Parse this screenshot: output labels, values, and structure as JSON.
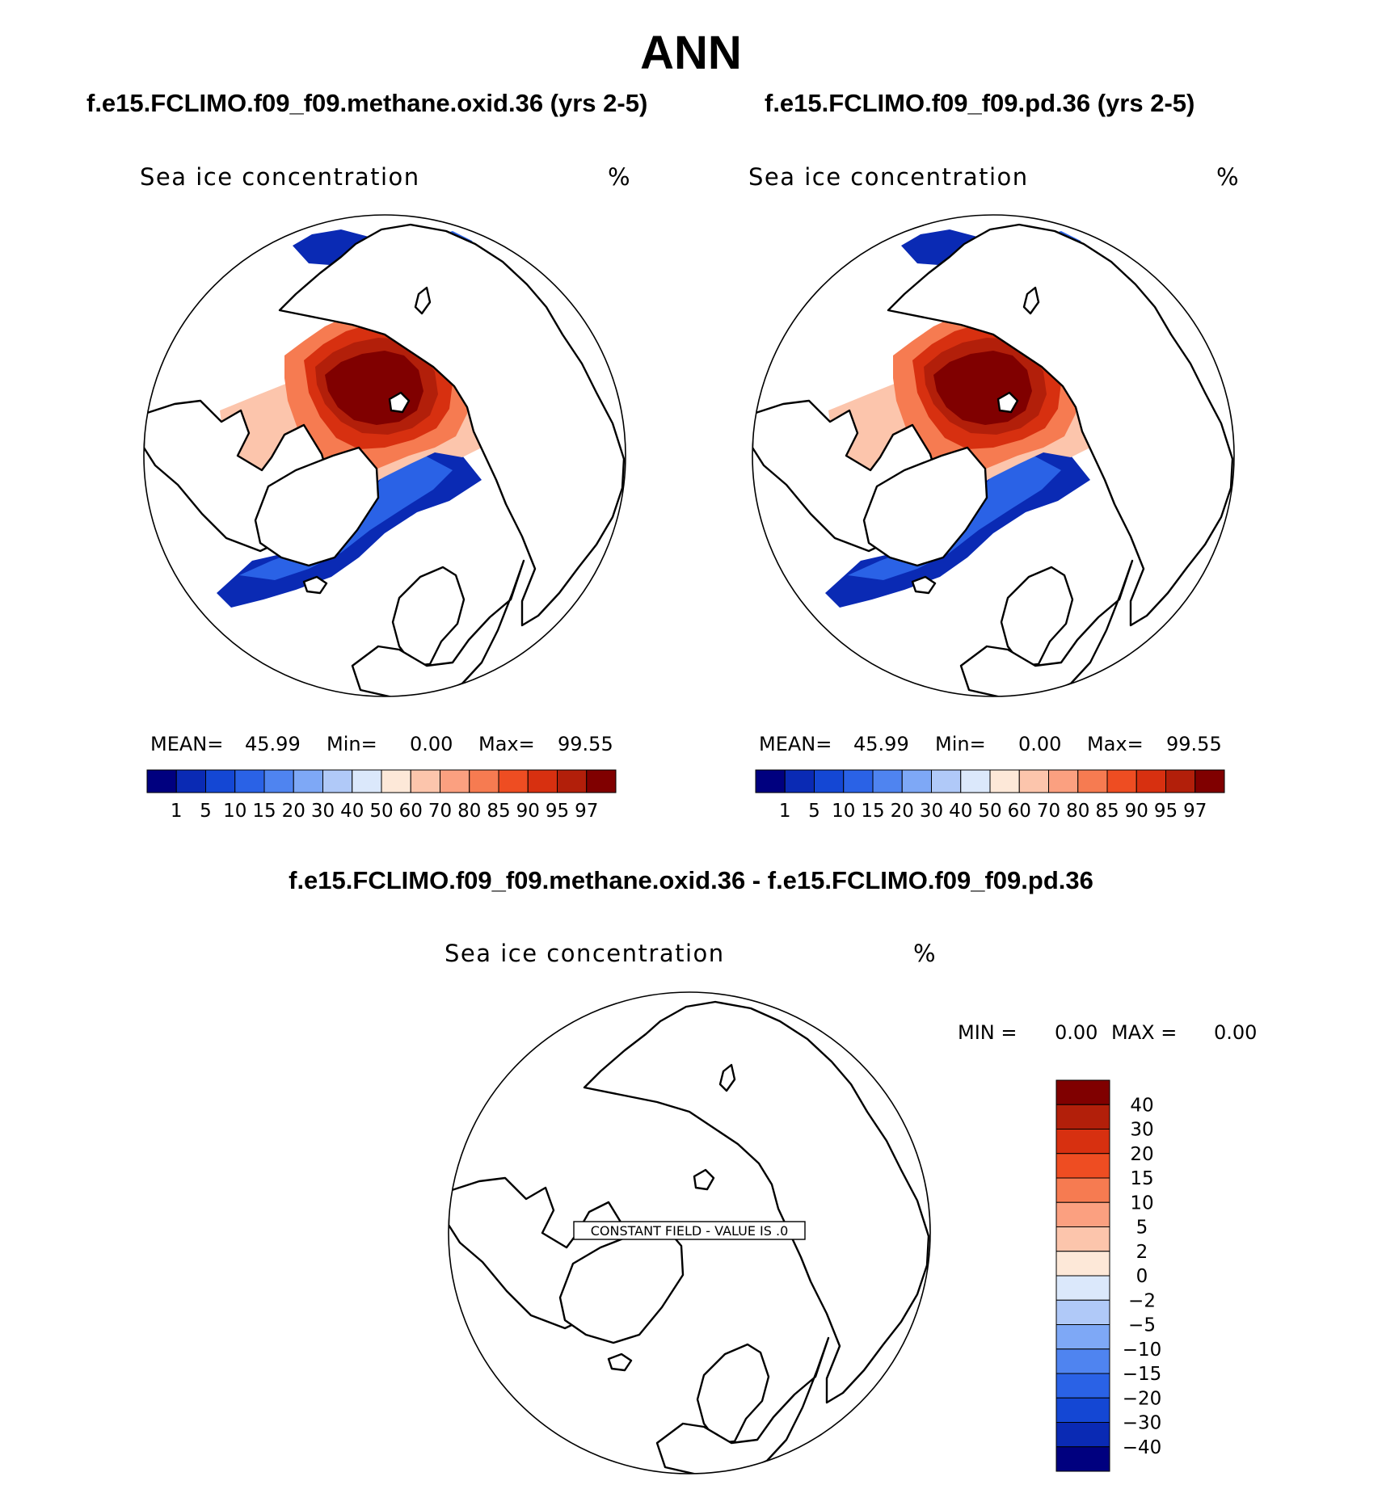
{
  "title": "ANN",
  "panels": [
    {
      "case_title": "f.e15.FCLIMO.f09_f09.methane.oxid.36 (yrs 2-5)",
      "variable_label": "Sea ice concentration",
      "units": "%",
      "stats": {
        "mean_label": "MEAN=",
        "mean_value": "45.99",
        "min_label": "Min=",
        "min_value": "0.00",
        "max_label": "Max=",
        "max_value": "99.55"
      }
    },
    {
      "case_title": "f.e15.FCLIMO.f09_f09.pd.36 (yrs 2-5)",
      "variable_label": "Sea ice concentration",
      "units": "%",
      "stats": {
        "mean_label": "MEAN=",
        "mean_value": "45.99",
        "min_label": "Min=",
        "min_value": "0.00",
        "max_label": "Max=",
        "max_value": "99.55"
      }
    }
  ],
  "difference": {
    "case_title": "f.e15.FCLIMO.f09_f09.methane.oxid.36 - f.e15.FCLIMO.f09_f09.pd.36",
    "variable_label": "Sea ice concentration",
    "units": "%",
    "min_label": "MIN =",
    "min_value": "0.00",
    "max_label": "MAX =",
    "max_value": "0.00",
    "constant_field_label": "CONSTANT FIELD - VALUE IS .0"
  },
  "chart_data": [
    {
      "type": "heatmap",
      "projection": "north-polar-stereographic",
      "title": "Sea ice concentration",
      "units": "%",
      "panel": "f.e15.FCLIMO.f09_f09.methane.oxid.36 (yrs 2-5)",
      "colorbar": {
        "orientation": "horizontal",
        "levels": [
          "1",
          "5",
          "10",
          "15",
          "20",
          "30",
          "40",
          "50",
          "60",
          "70",
          "80",
          "85",
          "90",
          "95",
          "97"
        ],
        "colors": [
          "#00007f",
          "#0a2ab4",
          "#1447d4",
          "#2a62e6",
          "#4f84f0",
          "#7ea8f6",
          "#b0c9f8",
          "#dbe8fb",
          "#fde8d8",
          "#fcc5ac",
          "#fba080",
          "#f67b51",
          "#ee4d22",
          "#d73010",
          "#b21f0a",
          "#800000"
        ]
      },
      "stats": {
        "mean": 45.99,
        "min": 0.0,
        "max": 99.55
      }
    },
    {
      "type": "heatmap",
      "projection": "north-polar-stereographic",
      "title": "Sea ice concentration",
      "units": "%",
      "panel": "f.e15.FCLIMO.f09_f09.pd.36 (yrs 2-5)",
      "colorbar": {
        "orientation": "horizontal",
        "levels": [
          "1",
          "5",
          "10",
          "15",
          "20",
          "30",
          "40",
          "50",
          "60",
          "70",
          "80",
          "85",
          "90",
          "95",
          "97"
        ],
        "colors": [
          "#00007f",
          "#0a2ab4",
          "#1447d4",
          "#2a62e6",
          "#4f84f0",
          "#7ea8f6",
          "#b0c9f8",
          "#dbe8fb",
          "#fde8d8",
          "#fcc5ac",
          "#fba080",
          "#f67b51",
          "#ee4d22",
          "#d73010",
          "#b21f0a",
          "#800000"
        ]
      },
      "stats": {
        "mean": 45.99,
        "min": 0.0,
        "max": 99.55
      }
    },
    {
      "type": "heatmap",
      "projection": "north-polar-stereographic",
      "title": "Sea ice concentration",
      "units": "%",
      "panel": "difference",
      "colorbar": {
        "orientation": "vertical",
        "levels": [
          "40",
          "30",
          "20",
          "15",
          "10",
          "5",
          "2",
          "0",
          "−2",
          "−5",
          "−10",
          "−15",
          "−20",
          "−30",
          "−40"
        ],
        "colors": [
          "#800000",
          "#b21f0a",
          "#d73010",
          "#ee4d22",
          "#f67b51",
          "#fba080",
          "#fcc5ac",
          "#fde8d8",
          "#dbe8fb",
          "#b0c9f8",
          "#7ea8f6",
          "#4f84f0",
          "#2a62e6",
          "#1447d4",
          "#0a2ab4",
          "#00007f"
        ]
      },
      "stats": {
        "min": 0.0,
        "max": 0.0
      }
    }
  ]
}
